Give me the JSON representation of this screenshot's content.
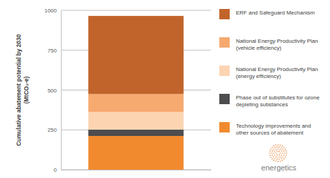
{
  "chart_data": {
    "type": "bar",
    "stacked": true,
    "grid": true,
    "legend": "right",
    "tick_labels": "y",
    "y_label": "Cumulative abatement potential by 2030 (MtCO₂-e)",
    "categories": [
      null
    ],
    "series": [
      {
        "name": "Technology improvements and other sources of abatement",
        "color": "#f18a2f",
        "values": [
          212
        ]
      },
      {
        "name": "Phase out of substitutes for ozone depleting substances",
        "color": "#4d4d4f",
        "values": [
          40
        ]
      },
      {
        "name": "National Energy Productivity Plan (energy efficiency)",
        "color": "#fcd4b2",
        "values": [
          110
        ]
      },
      {
        "name": "National Energy Productivity Plan (vehicle efficiency)",
        "color": "#f6aa70",
        "values": [
          113
        ]
      },
      {
        "name": "ERF and Safeguard Mechanism",
        "color": "#c1642b",
        "values": [
          490
        ]
      }
    ],
    "ylim": [
      0,
      1000
    ],
    "yticks": [
      0,
      250,
      500,
      750,
      1000
    ],
    "annotations": [
      "energetics"
    ]
  }
}
